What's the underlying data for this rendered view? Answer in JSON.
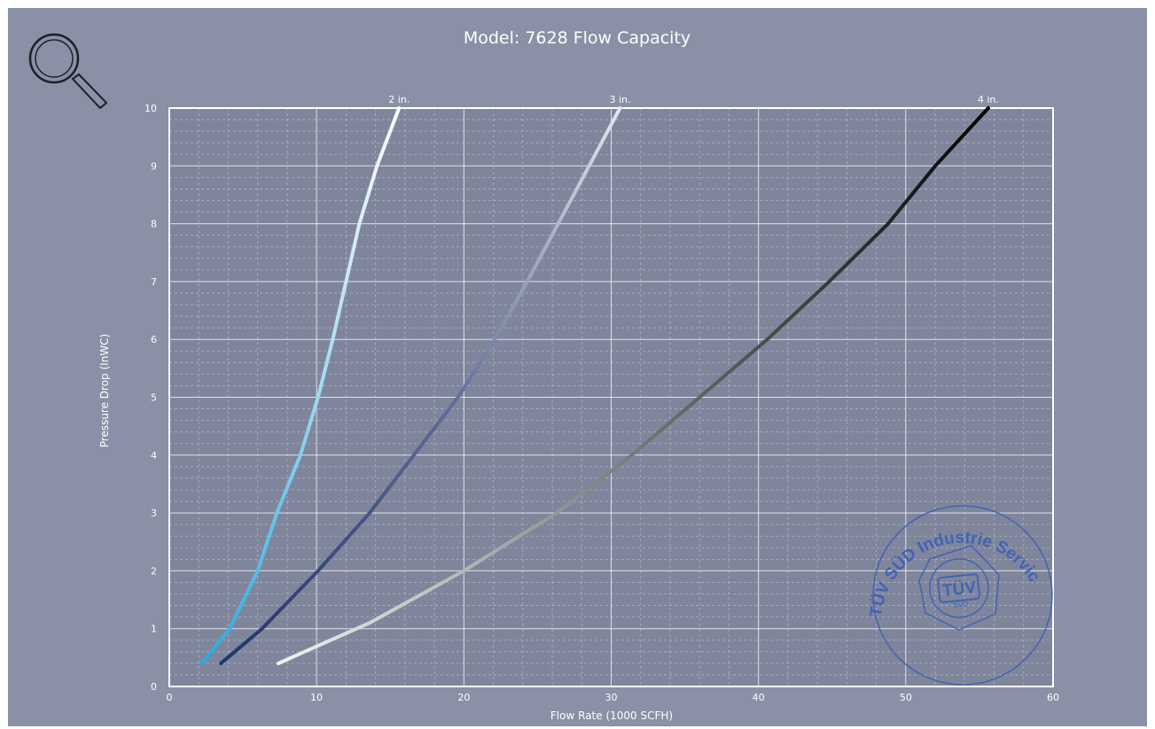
{
  "chart_data": {
    "type": "line",
    "title": "Model: 7628 Flow Capacity",
    "xlabel": "Flow Rate (1000 SCFH)",
    "ylabel": "Pressure Drop (InWC)",
    "xlim": [
      0,
      60
    ],
    "ylim": [
      0,
      10
    ],
    "x_ticks": [
      "0",
      "10",
      "20",
      "30",
      "40",
      "50",
      "60"
    ],
    "y_ticks": [
      "0",
      "1",
      "2",
      "3",
      "4",
      "5",
      "6",
      "7",
      "8",
      "9",
      "10"
    ],
    "grid": true,
    "series": [
      {
        "name": "2 in.",
        "x": [
          2.2,
          4.1,
          6.0,
          7.3,
          8.9,
          10.1,
          11.1,
          12.0,
          12.9,
          14.1,
          15.6
        ],
        "y": [
          0.4,
          1.0,
          2.0,
          3.0,
          4.0,
          5.0,
          6.0,
          7.0,
          8.0,
          9.0,
          10.0
        ],
        "colors": [
          "#29abe2",
          "#9fd9f2",
          "#ffffff"
        ]
      },
      {
        "name": "3 in.",
        "x": [
          3.5,
          6.3,
          10.1,
          13.6,
          16.6,
          19.6,
          22.1,
          24.3,
          26.4,
          28.5,
          30.6
        ],
        "y": [
          0.4,
          1.0,
          2.0,
          3.0,
          4.0,
          5.0,
          6.0,
          7.0,
          8.0,
          9.0,
          10.0
        ],
        "colors": [
          "#1f3566",
          "#5f6b96",
          "#e5e7ee"
        ]
      },
      {
        "name": "4 in.",
        "x": [
          7.4,
          13.6,
          20.0,
          26.3,
          31.4,
          36.0,
          40.6,
          44.8,
          48.8,
          52.0,
          55.6
        ],
        "y": [
          0.4,
          1.1,
          2.0,
          3.0,
          4.0,
          5.0,
          6.0,
          7.0,
          8.0,
          9.0,
          10.0
        ],
        "colors": [
          "#f3f3f3",
          "#6c6c6c",
          "#000000"
        ]
      }
    ]
  },
  "stamp": {
    "text": "TÜV SÜD Industrie Service GmbH",
    "logo_top": "TÜV",
    "logo_bottom": "SÜD",
    "color": "#3b5fb8"
  },
  "icons": {
    "zoom": "magnifier-icon"
  },
  "colors": {
    "panel": "#8a91a6",
    "plot_bg": "#7f869c",
    "grid_major": "#ffffff",
    "grid_minor": "#aeb4c4"
  }
}
